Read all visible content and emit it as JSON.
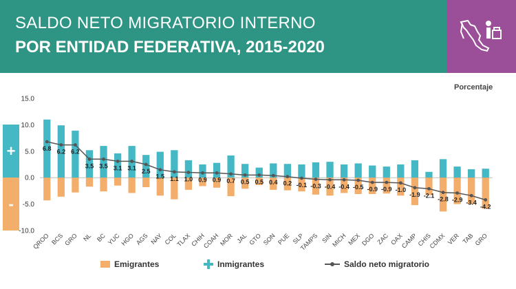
{
  "header": {
    "title_line1": "SALDO NETO MIGRATORIO INTERNO",
    "title_line2": "POR ENTIDAD FEDERATIVA, 2015-2020",
    "bg_color": "#2e9484",
    "logo_bg_color": "#9c4f99",
    "logo_icon": "mexico-map-migration-icon"
  },
  "chart_data": {
    "type": "bar",
    "title": "SALDO NETO MIGRATORIO INTERNO POR ENTIDAD FEDERATIVA, 2015-2020",
    "ylabel": "Porcentaje",
    "ylim": [
      -10,
      15
    ],
    "yticks": [
      "15.0",
      "10.0",
      "5.0",
      "0.0",
      "-5.0",
      "-10.0"
    ],
    "grid": false,
    "legend_position": "bottom",
    "categories": [
      "QROO",
      "BCS",
      "GRO",
      "NL",
      "BC",
      "YUC",
      "HGO",
      "AGS",
      "NAY",
      "COL",
      "TLAX",
      "CHIH",
      "COAH",
      "MOR",
      "JAL",
      "GTO",
      "SON",
      "PUE",
      "SLP",
      "TAMPS",
      "SIN",
      "MICH",
      "MEX",
      "DGO",
      "ZAC",
      "OAX",
      "CAMP",
      "CHIS",
      "CDMX",
      "VER",
      "TAB",
      "GRO"
    ],
    "series": [
      {
        "name": "Emigrantes",
        "kind": "bar",
        "color": "#f4ae6b",
        "values": [
          -4.3,
          -3.6,
          -2.8,
          -1.7,
          -2.6,
          -1.5,
          -2.9,
          -1.8,
          -3.4,
          -4.1,
          -2.3,
          -1.6,
          -1.9,
          -3.5,
          -2.1,
          -1.4,
          -2.3,
          -2.4,
          -2.6,
          -3.2,
          -3.4,
          -2.9,
          -3.1,
          -3.1,
          -3.0,
          -3.4,
          -5.2,
          -3.3,
          -6.4,
          -5.0,
          -5.0,
          -5.9
        ]
      },
      {
        "name": "Inmigrantes",
        "kind": "bar",
        "color": "#45b8c6",
        "values": [
          11.0,
          9.9,
          8.9,
          5.2,
          6.0,
          4.6,
          6.0,
          4.3,
          4.9,
          5.2,
          3.3,
          2.5,
          2.8,
          4.2,
          2.6,
          1.9,
          2.7,
          2.6,
          2.5,
          2.9,
          3.0,
          2.5,
          2.7,
          2.3,
          2.1,
          2.5,
          3.3,
          1.1,
          3.5,
          2.1,
          1.6,
          1.7
        ]
      },
      {
        "name": "Saldo neto migratorio",
        "kind": "line",
        "color": "#555555",
        "values": [
          6.8,
          6.2,
          6.2,
          3.5,
          3.5,
          3.1,
          3.1,
          2.5,
          1.5,
          1.1,
          1.0,
          0.9,
          0.9,
          0.7,
          0.5,
          0.5,
          0.4,
          0.2,
          -0.1,
          -0.3,
          -0.4,
          -0.4,
          -0.5,
          -0.9,
          -0.9,
          -1.0,
          -1.9,
          -2.1,
          -2.8,
          -2.9,
          -3.4,
          -4.2
        ],
        "labels": [
          "6.8",
          "6.2",
          "6.2",
          "3.5",
          "3.5",
          "3.1",
          "3.1",
          "2.5",
          "1.5",
          "1.1",
          "1.0",
          "0.9",
          "0.9",
          "0.7",
          "0.5",
          "0.5",
          "0.4",
          "0.2",
          "-0.1",
          "-0.3",
          "-0.4",
          "-0.4",
          "-0.5",
          "-0.9",
          "-0.9",
          "-1.0",
          "-1.9",
          "-2.1",
          "-2.8",
          "-2.9",
          "-3.4",
          "-4.2"
        ]
      }
    ]
  },
  "side_markers": {
    "plus": "+",
    "minus": "-"
  },
  "legend": {
    "emigrantes": "Emigrantes",
    "inmigrantes": "Inmigrantes",
    "saldo": "Saldo neto migratorio"
  }
}
